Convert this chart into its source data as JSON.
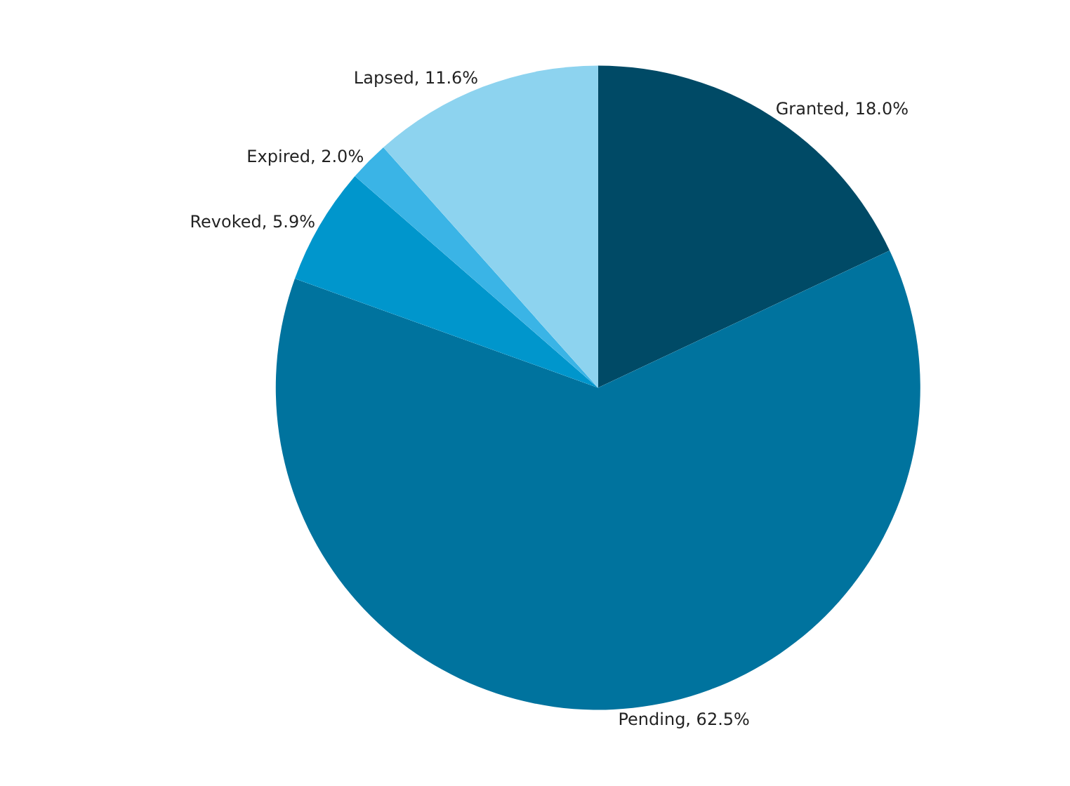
{
  "chart_data": {
    "type": "pie",
    "categories": [
      "Granted",
      "Pending",
      "Revoked",
      "Expired",
      "Lapsed"
    ],
    "values": [
      18.0,
      62.5,
      5.9,
      2.0,
      11.6
    ],
    "colors": [
      "#004a66",
      "#00739e",
      "#0096cc",
      "#3ab4e6",
      "#8dd3ef"
    ],
    "value_labels": [
      "18.0%",
      "62.5%",
      "5.9%",
      "2.0%",
      "11.6%"
    ],
    "legend": false
  }
}
